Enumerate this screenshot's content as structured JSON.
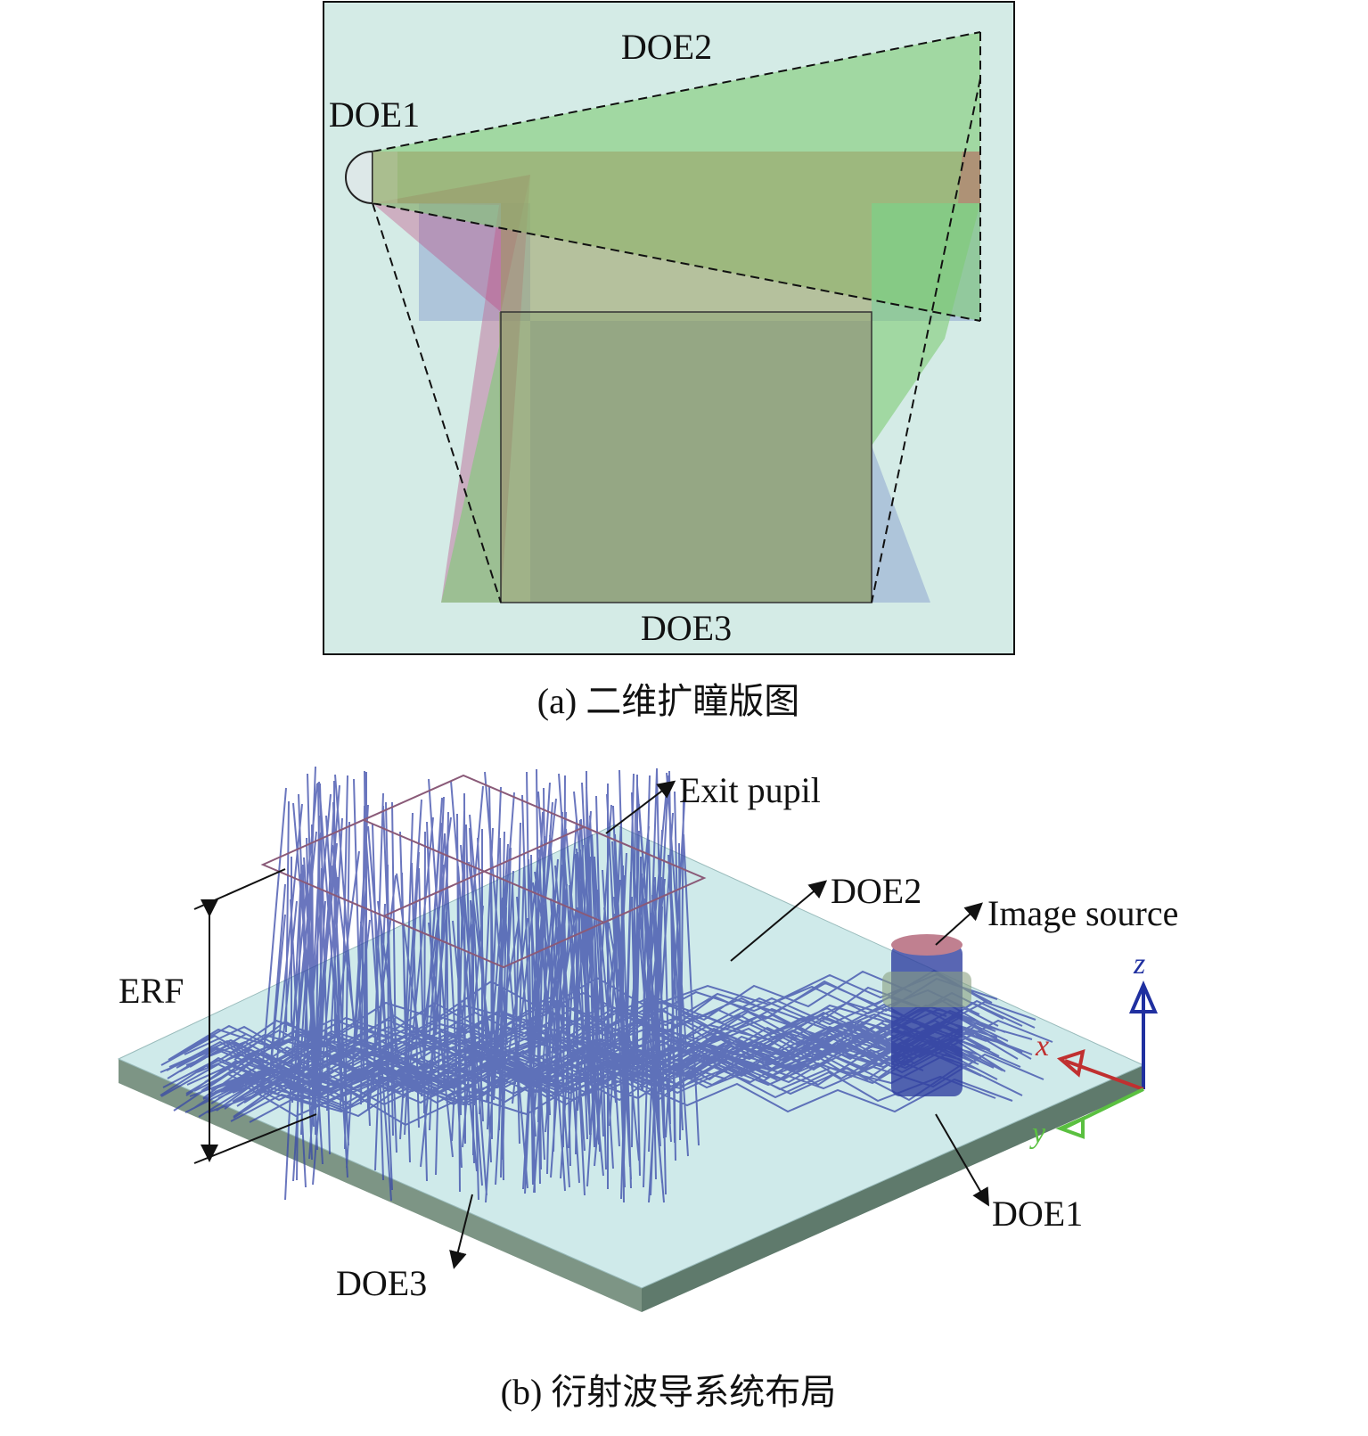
{
  "panel_a": {
    "labels": {
      "doe1": "DOE1",
      "doe2": "DOE2",
      "doe3": "DOE3"
    },
    "caption": "(a) 二维扩瞳版图"
  },
  "panel_b": {
    "labels": {
      "exit_pupil": "Exit pupil",
      "doe2": "DOE2",
      "image_source": "Image source",
      "doe1": "DOE1",
      "doe3": "DOE3",
      "erf": "ERF"
    },
    "axes": {
      "x": "x",
      "y": "y",
      "z": "z"
    },
    "caption": "(b) 衍射波导系统布局"
  }
}
